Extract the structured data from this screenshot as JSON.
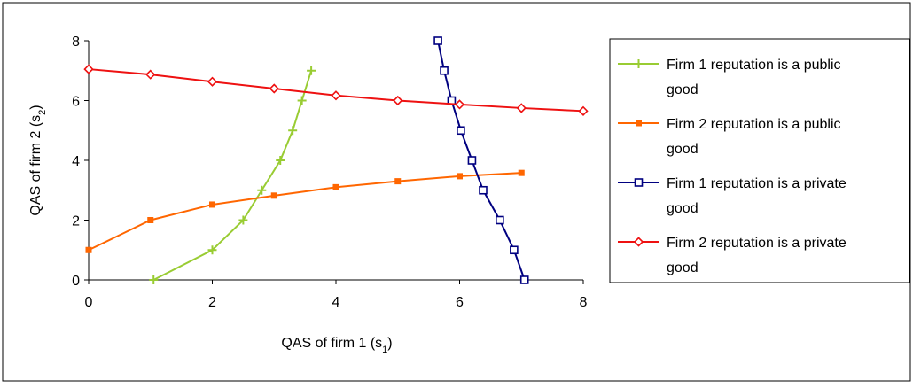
{
  "chart_data": {
    "type": "line",
    "xlabel": "QAS of firm 1 (s",
    "xlabel_sub": "1",
    "xlabel_end": ")",
    "ylabel": "QAS of firm 2 (s",
    "ylabel_sub": "2",
    "ylabel_end": ")",
    "xlim": [
      0,
      8
    ],
    "ylim": [
      0,
      8
    ],
    "xticks": [
      0,
      2,
      4,
      6,
      8
    ],
    "yticks": [
      0,
      2,
      4,
      6,
      8
    ],
    "legend_position": "right",
    "series": [
      {
        "name": "Firm 1 reputation is a public good",
        "legend_lines": [
          "Firm 1 reputation is a public",
          "good"
        ],
        "color": "#99cc33",
        "marker": "plus",
        "points": [
          [
            1.05,
            0
          ],
          [
            2.0,
            1.0
          ],
          [
            2.5,
            2.0
          ],
          [
            2.8,
            3.0
          ],
          [
            3.1,
            4.0
          ],
          [
            3.3,
            5.0
          ],
          [
            3.45,
            6.0
          ],
          [
            3.6,
            7.0
          ]
        ]
      },
      {
        "name": "Firm 2 reputation is a public good",
        "legend_lines": [
          "Firm 2 reputation is a public",
          "good"
        ],
        "color": "#ff6600",
        "marker": "square",
        "points": [
          [
            0,
            1.0
          ],
          [
            1.0,
            2.0
          ],
          [
            2.0,
            2.52
          ],
          [
            3.0,
            2.82
          ],
          [
            4.0,
            3.1
          ],
          [
            5.0,
            3.3
          ],
          [
            6.0,
            3.47
          ],
          [
            7.0,
            3.58
          ]
        ]
      },
      {
        "name": "Firm 1 reputation is a private good",
        "legend_lines": [
          "Firm 1 reputation is a private",
          "good"
        ],
        "color": "#000080",
        "marker": "open-square",
        "points": [
          [
            5.65,
            8.0
          ],
          [
            5.75,
            7.0
          ],
          [
            5.87,
            6.0
          ],
          [
            6.02,
            5.0
          ],
          [
            6.2,
            4.0
          ],
          [
            6.38,
            3.0
          ],
          [
            6.65,
            2.0
          ],
          [
            6.88,
            1.0
          ],
          [
            7.05,
            0
          ]
        ]
      },
      {
        "name": "Firm 2 reputation is a private good",
        "legend_lines": [
          "Firm 2 reputation is a private",
          "good"
        ],
        "color": "#ee1111",
        "marker": "diamond",
        "points": [
          [
            0,
            7.05
          ],
          [
            1.0,
            6.87
          ],
          [
            2.0,
            6.63
          ],
          [
            3.0,
            6.4
          ],
          [
            4.0,
            6.17
          ],
          [
            5.0,
            6.0
          ],
          [
            6.0,
            5.87
          ],
          [
            7.0,
            5.75
          ],
          [
            8.0,
            5.65
          ]
        ]
      }
    ]
  }
}
